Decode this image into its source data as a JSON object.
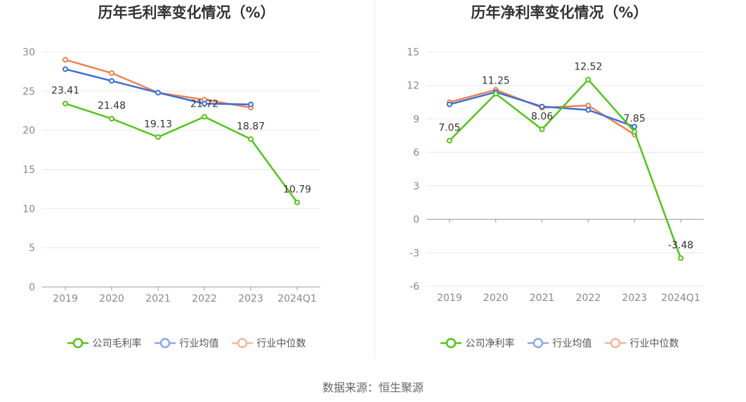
{
  "chart_data": [
    {
      "type": "line",
      "title": "历年毛利率变化情况（%）",
      "categories": [
        "2019",
        "2020",
        "2021",
        "2022",
        "2023",
        "2024Q1"
      ],
      "ylim": [
        0,
        30
      ],
      "yticks": [
        0,
        5,
        10,
        15,
        20,
        25,
        30
      ],
      "grid": true,
      "legend_position": "bottom",
      "series": [
        {
          "name": "公司毛利率",
          "color": "#52c41a",
          "values": [
            23.41,
            21.48,
            19.13,
            21.72,
            18.87,
            10.79
          ],
          "labels": [
            "23.41",
            "21.48",
            "19.13",
            "21.72",
            "18.87",
            "10.79"
          ]
        },
        {
          "name": "行业均值",
          "color": "#3b6fd8",
          "legend_color": "#8aa8ec",
          "values": [
            27.8,
            26.3,
            24.8,
            23.4,
            23.3,
            null
          ]
        },
        {
          "name": "行业中位数",
          "color": "#f08050",
          "legend_color": "#f5b59a",
          "values": [
            29.0,
            27.3,
            24.8,
            23.9,
            22.9,
            null
          ]
        }
      ]
    },
    {
      "type": "line",
      "title": "历年净利率变化情况（%）",
      "categories": [
        "2019",
        "2020",
        "2021",
        "2022",
        "2023",
        "2024Q1"
      ],
      "ylim": [
        -6,
        15
      ],
      "yticks": [
        -6,
        -3,
        0,
        3,
        6,
        9,
        12,
        15
      ],
      "grid": true,
      "legend_position": "bottom",
      "series": [
        {
          "name": "公司净利率",
          "color": "#52c41a",
          "values": [
            7.05,
            11.25,
            8.06,
            12.52,
            7.85,
            -3.48
          ],
          "labels": [
            "7.05",
            "11.25",
            "8.06",
            "12.52",
            "7.85",
            "-3.48"
          ]
        },
        {
          "name": "行业均值",
          "color": "#3b6fd8",
          "legend_color": "#8aa8ec",
          "values": [
            10.3,
            11.4,
            10.1,
            9.8,
            8.3,
            null
          ]
        },
        {
          "name": "行业中位数",
          "color": "#f08050",
          "legend_color": "#f5b59a",
          "values": [
            10.5,
            11.6,
            10.0,
            10.2,
            7.6,
            null
          ]
        }
      ]
    }
  ],
  "source": "数据来源：恒生聚源"
}
